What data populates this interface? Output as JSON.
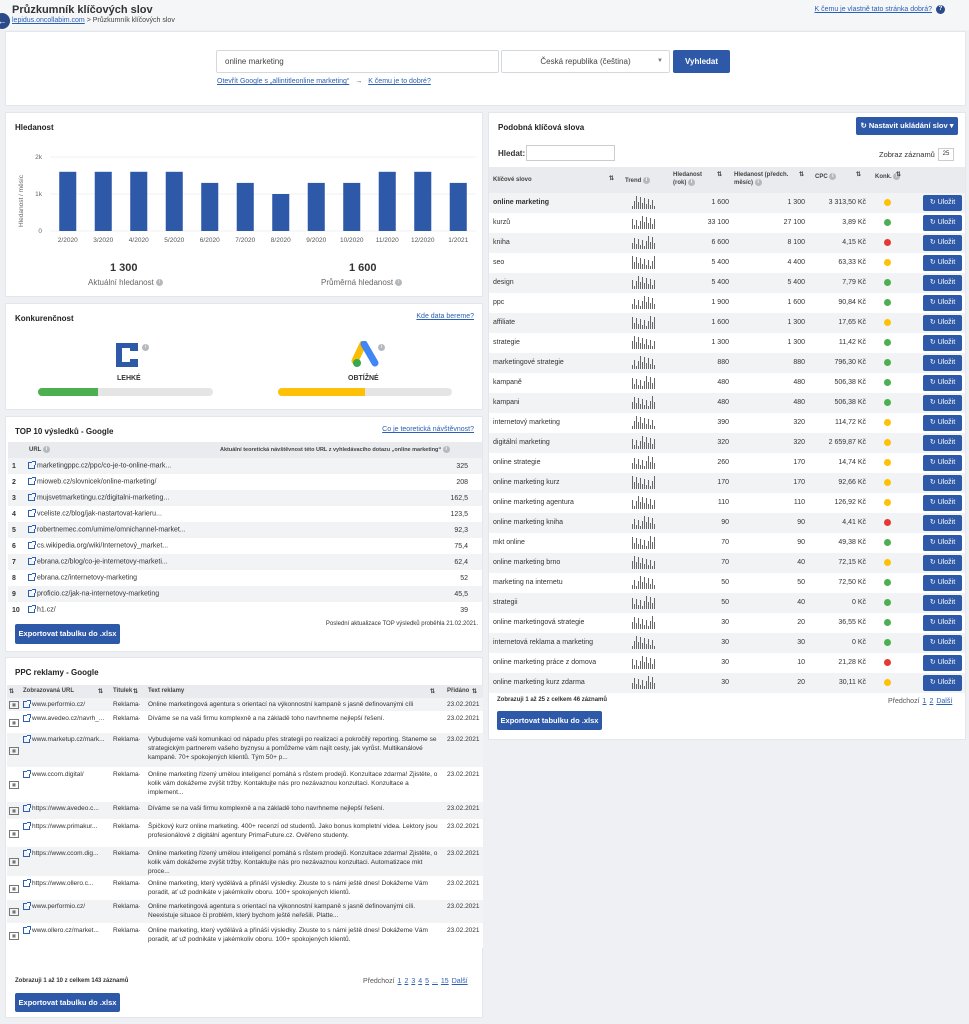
{
  "header": {
    "title": "Průzkumník klíčových slov",
    "crumb_link": "lepidus.oncollabim.com",
    "crumb_sep": " > ",
    "crumb_current": "Průzkumník klíčových slov",
    "help_link": "K čemu je vlastně tato stránka dobrá?",
    "help_icon": "?"
  },
  "search": {
    "query": "online marketing",
    "country": "Česká republika (čeština)",
    "button": "Vyhledat",
    "google_link": "Otevřít Google s „allintitleonline marketing“",
    "arrow": "→",
    "why_link": "K čemu je to dobré?"
  },
  "volume": {
    "title": "Hledanost",
    "ylabel": "Hledanost / měsíc",
    "current_value": "1 300",
    "current_label": "Aktuální hledanost",
    "avg_value": "1 600",
    "avg_label": "Průměrná hledanost"
  },
  "chart_data": {
    "type": "bar",
    "categories": [
      "2/2020",
      "3/2020",
      "4/2020",
      "5/2020",
      "6/2020",
      "7/2020",
      "8/2020",
      "9/2020",
      "10/2020",
      "11/2020",
      "12/2020",
      "1/2021"
    ],
    "values": [
      1600,
      1600,
      1600,
      1600,
      1300,
      1300,
      1000,
      1300,
      1300,
      1600,
      1600,
      1300
    ],
    "ylim": [
      0,
      2000
    ],
    "yticks": [
      "0",
      "1k",
      "2k"
    ],
    "grid": true,
    "color": "#2e59a8"
  },
  "competition": {
    "title": "Konkurenčnost",
    "link": "Kde data bereme?",
    "collabim_label": "LEHKÉ",
    "collabim_fill": 0.34,
    "collabim_color": "#4caf50",
    "ads_label": "OBTÍŽNÉ",
    "ads_fill": 0.5,
    "ads_color": "#ffc107"
  },
  "top10": {
    "title": "TOP 10 výsledků - Google",
    "link": "Co je teoretická návštěvnost?",
    "col_url": "URL",
    "col_visits": "Aktuální teoretická návštěvnost této URL z vyhledávacího dotazu „online marketing“",
    "rows": [
      {
        "n": "1",
        "url": "marketingppc.cz/ppc/co-je-to-online-mark...",
        "v": "325"
      },
      {
        "n": "2",
        "url": "mioweb.cz/slovnicek/online-marketing/",
        "v": "208"
      },
      {
        "n": "3",
        "url": "mujsvetmarketingu.cz/digitalni-marketing...",
        "v": "162,5"
      },
      {
        "n": "4",
        "url": "vceliste.cz/blog/jak-nastartovat-karieru...",
        "v": "123,5"
      },
      {
        "n": "5",
        "url": "robertnemec.com/umime/omnichannel-market...",
        "v": "92,3"
      },
      {
        "n": "6",
        "url": "cs.wikipedia.org/wiki/Internetový_market...",
        "v": "75,4"
      },
      {
        "n": "7",
        "url": "ebrana.cz/blog/co-je-internetovy-marketi...",
        "v": "62,4"
      },
      {
        "n": "8",
        "url": "ebrana.cz/internetovy-marketing",
        "v": "52"
      },
      {
        "n": "9",
        "url": "proficio.cz/jak-na-internetovy-marketing",
        "v": "45,5"
      },
      {
        "n": "10",
        "url": "h1.cz/",
        "v": "39"
      }
    ],
    "updated": "Poslední aktualizace TOP výsledků proběhla 21.02.2021.",
    "export": "Exportovat tabulku do .xlsx"
  },
  "ppc": {
    "title": "PPC reklamy - Google",
    "col_url": "Zobrazovaná URL",
    "col_title": "Titulek",
    "col_text": "Text reklamy",
    "col_date": "Přidáno",
    "rows": [
      {
        "url": "www.performio.cz/",
        "t": "Reklama·",
        "text": "Online marketingová agentura s orientací na výkonnostní kampaně s jasně definovanými cíli",
        "d": "23.02.2021"
      },
      {
        "url": "www.avedeo.cz/navrh_...",
        "t": "Reklama·",
        "text": "Díváme se na vaši firmu komplexně a na základě toho navrhneme nejlepší řešení.",
        "d": "23.02.2021"
      },
      {
        "url": "www.marketup.cz/mark...",
        "t": "Reklama·",
        "text": "Vybudujeme vaši komunikaci od nápadu přes strategii po realizaci a pokročilý reporting. Staneme se strategickým partnerem vašeho byznysu a pomůžeme vám najít cesty, jak vyrůst. Multikanálové kampaně. 70+ spokojených klientů. Tým 50+ p...",
        "d": "23.02.2021"
      },
      {
        "url": "www.ccom.digital/",
        "t": "Reklama·",
        "text": "Online marketing řízený umělou inteligencí pomáhá s růstem prodejů. Konzultace zdarma! Zjistěte, o kolik vám dokážeme zvýšit tržby. Kontaktujte nás pro nezávaznou konzultaci. Konzultace a implement...",
        "d": "23.02.2021"
      },
      {
        "url": "https://www.avedeo.c...",
        "t": "Reklama·",
        "text": "Díváme se na vaši firmu komplexně a na základě toho navrhneme nejlepší řešení.",
        "d": "23.02.2021"
      },
      {
        "url": "https://www.primakur...",
        "t": "Reklama·",
        "text": "Špičkový kurz online marketing. 400+ recenzí od studentů. Jako bonus kompletní videa. Lektory jsou profesionálové z digitální agentury PrimaFuture.cz. Ověřeno studenty.",
        "d": "23.02.2021"
      },
      {
        "url": "https://www.ccom.dig...",
        "t": "Reklama·",
        "text": "Online marketing řízený umělou inteligencí pomáhá s růstem prodejů. Konzultace zdarma! Zjistěte, o kolik vám dokážeme zvýšit tržby. Kontaktujte nás pro nezávaznou konzultaci. Automatizace mkt proce...",
        "d": "23.02.2021"
      },
      {
        "url": "https://www.ollero.c...",
        "t": "Reklama·",
        "text": "Online marketing, který vydělává a přináší výsledky. Zkuste to s námi ještě dnes! Dokážeme Vám poradit, ať už podnikáte v jakémkoliv oboru. 100+ spokojených klientů.",
        "d": "23.02.2021"
      },
      {
        "url": "www.performio.cz/",
        "t": "Reklama·",
        "text": "Online marketingová agentura s orientací na výkonnostní kampaně s jasně definovanými cíli. Neexistuje situace či problém, který bychom ještě neřešili. Platte...",
        "d": "23.02.2021"
      },
      {
        "url": "www.ollero.cz/market...",
        "t": "Reklama·",
        "text": "Online marketing, který vydělává a přináší výsledky. Zkuste to s námi ještě dnes! Dokážeme Vám poradit, ať už podnikáte v jakémkoliv oboru. 100+ spokojených klientů.",
        "d": "23.02.2021"
      }
    ],
    "summary": "Zobrazuji 1 až 10 z celkem 143 záznamů",
    "prev": "Předchozí",
    "pages": [
      "1",
      "2",
      "3",
      "4",
      "5",
      "...",
      "15"
    ],
    "next": "Další",
    "export": "Exportovat tabulku do .xlsx"
  },
  "similar": {
    "title": "Podobná klíčová slova",
    "settings_btn": "Nastavit ukládání slov",
    "filter_label": "Hledat:",
    "show_label": "Zobraz záznamů",
    "show_value": "25",
    "cols": {
      "kw": "Klíčové slovo",
      "trend": "Trend",
      "year": "Hledanost (rok)",
      "month": "Hledanost (předch. měsíc)",
      "cpc": "CPC",
      "konk": "Konk."
    },
    "save_label": "Uložit",
    "rows": [
      {
        "kw": "online marketing",
        "y": "1 600",
        "m": "1 300",
        "cpc": "3 313,50 Kč",
        "c": "#ffc107",
        "bold": true
      },
      {
        "kw": "kurzů",
        "y": "33 100",
        "m": "27 100",
        "cpc": "3,89 Kč",
        "c": "#4caf50"
      },
      {
        "kw": "kniha",
        "y": "6 600",
        "m": "8 100",
        "cpc": "4,15 Kč",
        "c": "#e53935"
      },
      {
        "kw": "seo",
        "y": "5 400",
        "m": "4 400",
        "cpc": "63,33 Kč",
        "c": "#ffc107"
      },
      {
        "kw": "design",
        "y": "5 400",
        "m": "5 400",
        "cpc": "7,79 Kč",
        "c": "#4caf50"
      },
      {
        "kw": "ppc",
        "y": "1 900",
        "m": "1 600",
        "cpc": "90,84 Kč",
        "c": "#4caf50"
      },
      {
        "kw": "affiliate",
        "y": "1 600",
        "m": "1 300",
        "cpc": "17,65 Kč",
        "c": "#ffc107"
      },
      {
        "kw": "strategie",
        "y": "1 300",
        "m": "1 300",
        "cpc": "11,42 Kč",
        "c": "#4caf50"
      },
      {
        "kw": "marketingové strategie",
        "y": "880",
        "m": "880",
        "cpc": "796,30 Kč",
        "c": "#4caf50"
      },
      {
        "kw": "kampaně",
        "y": "480",
        "m": "480",
        "cpc": "506,38 Kč",
        "c": "#4caf50"
      },
      {
        "kw": "kampani",
        "y": "480",
        "m": "480",
        "cpc": "506,38 Kč",
        "c": "#4caf50"
      },
      {
        "kw": "internetový marketing",
        "y": "390",
        "m": "320",
        "cpc": "114,72 Kč",
        "c": "#ffc107"
      },
      {
        "kw": "digitální marketing",
        "y": "320",
        "m": "320",
        "cpc": "2 659,87 Kč",
        "c": "#ffc107"
      },
      {
        "kw": "online strategie",
        "y": "260",
        "m": "170",
        "cpc": "14,74 Kč",
        "c": "#ffc107"
      },
      {
        "kw": "online marketing kurz",
        "y": "170",
        "m": "170",
        "cpc": "92,66 Kč",
        "c": "#ffc107"
      },
      {
        "kw": "online marketing agentura",
        "y": "110",
        "m": "110",
        "cpc": "126,92 Kč",
        "c": "#ffc107"
      },
      {
        "kw": "online marketing kniha",
        "y": "90",
        "m": "90",
        "cpc": "4,41 Kč",
        "c": "#e53935"
      },
      {
        "kw": "mkt online",
        "y": "70",
        "m": "90",
        "cpc": "49,38 Kč",
        "c": "#4caf50"
      },
      {
        "kw": "online marketing brno",
        "y": "70",
        "m": "40",
        "cpc": "72,15 Kč",
        "c": "#ffc107"
      },
      {
        "kw": "marketing na internetu",
        "y": "50",
        "m": "50",
        "cpc": "72,50 Kč",
        "c": "#4caf50"
      },
      {
        "kw": "strategii",
        "y": "50",
        "m": "40",
        "cpc": "0 Kč",
        "c": "#4caf50"
      },
      {
        "kw": "online marketingová strategie",
        "y": "30",
        "m": "20",
        "cpc": "36,55 Kč",
        "c": "#4caf50"
      },
      {
        "kw": "internetová reklama a marketing",
        "y": "30",
        "m": "30",
        "cpc": "0 Kč",
        "c": "#4caf50"
      },
      {
        "kw": "online marketing práce z domova",
        "y": "30",
        "m": "10",
        "cpc": "21,28 Kč",
        "c": "#e53935"
      },
      {
        "kw": "online marketing kurz zdarma",
        "y": "30",
        "m": "20",
        "cpc": "30,11 Kč",
        "c": "#ffc107"
      }
    ],
    "summary": "Zobrazuji 1 až 25 z celkem 46 záznamů",
    "prev": "Předchozí",
    "pages": [
      "1",
      "2"
    ],
    "next": "Další",
    "export": "Exportovat tabulku do .xlsx"
  }
}
